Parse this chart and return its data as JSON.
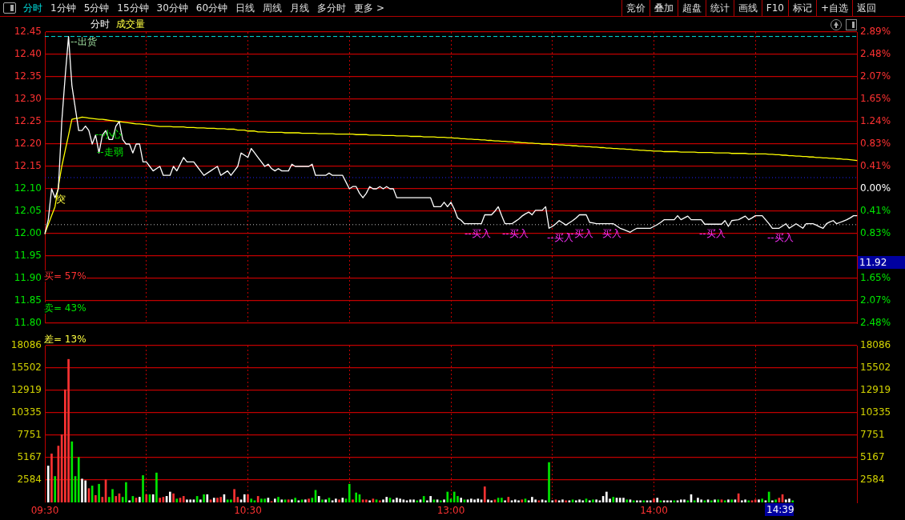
{
  "chart_data": [
    {
      "type": "other",
      "annotations": [
        "分时",
        "1分钟",
        "5分钟",
        "15分钟",
        "30分钟",
        "60分钟",
        "日线",
        "周线",
        "月线",
        "多分时",
        "更多 >",
        "竞价",
        "叠加",
        "超盘",
        "统计",
        "画线",
        "F10",
        "标记",
        "+自选",
        "返回"
      ]
    },
    {
      "type": "line",
      "title": "分时",
      "subtitle": "成交量",
      "categories": [
        null,
        null,
        null,
        null,
        null,
        null,
        null,
        null,
        null,
        null,
        null,
        null,
        null,
        null,
        null,
        null,
        null,
        null,
        null,
        null,
        null,
        null,
        null,
        null,
        null,
        null,
        null,
        null,
        null,
        null,
        null,
        null,
        null,
        null,
        null,
        null,
        null,
        null,
        null,
        null,
        null,
        null,
        null,
        null,
        null,
        null,
        null,
        null,
        null,
        null,
        null,
        null,
        null,
        null,
        null,
        null,
        null,
        null,
        null,
        null,
        null,
        null,
        null,
        null,
        null,
        null,
        null,
        null,
        null,
        null,
        null,
        null,
        null,
        null,
        null,
        null,
        null,
        null,
        null,
        null,
        null,
        null,
        null,
        null,
        null,
        null,
        null,
        null,
        null,
        null,
        null,
        null,
        null,
        null,
        null,
        null,
        null,
        null,
        null,
        null,
        null,
        null,
        null,
        null,
        null,
        null,
        null,
        null,
        null,
        null,
        null,
        null,
        null,
        null,
        null,
        null,
        null,
        null,
        null,
        null,
        null,
        null,
        null,
        null,
        null,
        null,
        null,
        null,
        null,
        null,
        null,
        null,
        null,
        null,
        null,
        null,
        null,
        null,
        null,
        null,
        null,
        null,
        null,
        null,
        null,
        null,
        null,
        null,
        null,
        null,
        null,
        null,
        null,
        null,
        null,
        null,
        null,
        null,
        null,
        null,
        null,
        null,
        null,
        null,
        null,
        null,
        null,
        null,
        null,
        null,
        null,
        null,
        null,
        null,
        null,
        null,
        null,
        null,
        null,
        null,
        null,
        null,
        null,
        null,
        null,
        null,
        null,
        null,
        null,
        null,
        null,
        null,
        null,
        null,
        null,
        null,
        null,
        null,
        null,
        null,
        null,
        null,
        null,
        null,
        null,
        null,
        null,
        null,
        null,
        null,
        null,
        null,
        null,
        null,
        null,
        null,
        null,
        null,
        null,
        null,
        null,
        null,
        null,
        null,
        null,
        null,
        null,
        null,
        null,
        null,
        null,
        null,
        null,
        null,
        null,
        null,
        null,
        null,
        null,
        null,
        null
      ],
      "ylim": [
        11.8,
        12.45
      ],
      "yticks": [
        12.45,
        {
          "value": 12.4,
          "label": "12.40"
        },
        12.35,
        {
          "value": 12.3,
          "label": "12.30"
        },
        12.25,
        {
          "value": 12.2,
          "label": "12.20"
        },
        12.15,
        {
          "value": 12.1,
          "label": "12.10"
        },
        12.05,
        {
          "value": 12.0,
          "label": "12.00"
        },
        11.95,
        {
          "value": 11.9,
          "label": "11.90"
        },
        11.85,
        {
          "value": 11.8,
          "label": "11.80"
        }
      ],
      "y2lim": [
        -2.48,
        2.89
      ],
      "y2ticks": [
        {
          "value": 2.89,
          "label": "2.89%"
        },
        {
          "value": 2.48,
          "label": "2.48%"
        },
        {
          "value": 2.07,
          "label": "2.07%"
        },
        {
          "value": 1.65,
          "label": "1.65%"
        },
        {
          "value": 1.24,
          "label": "1.24%"
        },
        {
          "value": 0.83,
          "label": "0.83%"
        },
        {
          "value": 0.41,
          "label": "0.41%"
        },
        {
          "value": 0,
          "label": "0.00%"
        },
        {
          "value": -0.41,
          "label": "0.41%"
        },
        {
          "value": -0.83,
          "label": "0.83%"
        },
        {
          "value": -1.24,
          "label": null
        },
        {
          "value": -1.65,
          "label": "1.65%"
        },
        {
          "value": -2.07,
          "label": "2.07%"
        },
        {
          "value": -2.48,
          "label": "2.48%"
        }
      ],
      "tick_labels": "y",
      "grid": true,
      "legend": false,
      "marker": "none",
      "line_style": "solid",
      "ref_lines": [
        {
          "axis": "y",
          "value": 12.44,
          "color": "#00e0e0",
          "line_style": "dashed"
        },
        {
          "axis": "y",
          "value": 12.125,
          "color": "#2020ff",
          "line_style": "dotted"
        },
        {
          "axis": "y",
          "value": 12.02,
          "color": "#c0c0c0",
          "line_style": "dotted"
        }
      ],
      "annotations": [
        "买= 57%",
        "卖= 43%",
        "差= 13%",
        "--出货",
        "突",
        "--小心",
        "--走弱",
        "--买入",
        "--买入",
        "--买入",
        "--买入",
        "买入",
        "--买入",
        "--买入",
        "11.92"
      ],
      "series": [
        {
          "color": "#ffffff",
          "values": [
            12.0,
            12.03,
            12.1,
            12.08,
            12.1,
            12.25,
            12.35,
            12.44,
            12.33,
            12.28,
            12.23,
            12.23,
            12.24,
            12.23,
            12.2,
            12.22,
            12.18,
            12.22,
            12.23,
            12.21,
            12.21,
            12.24,
            12.25,
            12.21,
            12.2,
            12.2,
            12.18,
            12.2,
            12.2,
            12.16,
            12.16,
            12.15,
            12.14,
            12.145,
            12.15,
            12.13,
            12.13,
            12.13,
            12.15,
            12.14,
            12.155,
            12.17,
            12.16,
            12.16,
            12.16,
            12.15,
            12.14,
            12.13,
            12.135,
            12.14,
            12.145,
            12.15,
            12.13,
            12.135,
            12.14,
            12.13,
            12.14,
            12.15,
            12.18,
            12.175,
            12.17,
            12.19,
            12.18,
            12.17,
            12.16,
            12.15,
            12.155,
            12.145,
            12.14,
            12.145,
            12.14,
            12.14,
            12.14,
            12.155,
            12.15,
            12.15,
            12.15,
            12.15,
            12.15,
            12.155,
            12.13,
            12.13,
            12.13,
            12.13,
            12.135,
            12.13,
            12.13,
            12.13,
            12.13,
            12.115,
            12.1,
            12.105,
            12.105,
            12.09,
            12.08,
            12.09,
            12.105,
            12.1,
            12.1,
            12.105,
            12.1,
            12.105,
            12.1,
            12.1,
            12.08,
            12.08,
            12.08,
            12.08,
            12.08,
            12.08,
            12.08,
            12.08,
            12.08,
            12.08,
            12.08,
            12.06,
            12.06,
            12.06,
            12.07,
            12.06,
            12.07,
            12.055,
            12.035,
            12.03,
            12.022,
            12.022,
            12.022,
            12.022,
            12.022,
            12.022,
            12.042,
            12.042,
            12.042,
            12.05,
            12.06,
            12.04,
            12.022,
            12.022,
            12.022,
            12.027,
            12.032,
            12.039,
            12.044,
            12.048,
            12.042,
            12.052,
            12.052,
            12.052,
            12.06,
            12.012,
            12.016,
            12.022,
            12.029,
            12.024,
            12.019,
            12.024,
            12.029,
            12.035,
            12.042,
            12.042,
            12.042,
            12.025,
            12.024,
            12.022,
            12.022,
            12.022,
            12.022,
            12.022,
            12.022,
            12.017,
            12.012,
            12.009,
            12.006,
            12.003,
            12.008,
            12.012,
            12.012,
            12.012,
            12.012,
            12.012,
            12.016,
            12.02,
            12.025,
            12.031,
            12.031,
            12.031,
            12.031,
            12.04,
            12.031,
            12.035,
            12.039,
            12.031,
            12.031,
            12.031,
            12.031,
            12.021,
            12.021,
            12.021,
            12.021,
            12.021,
            12.021,
            12.029,
            12.016,
            12.029,
            12.03,
            12.031,
            12.035,
            12.039,
            12.031,
            12.035,
            12.04,
            12.04,
            12.04,
            12.031,
            12.022,
            12.012,
            12.012,
            12.012,
            12.017,
            12.022,
            12.012,
            12.017,
            12.022,
            12.017,
            12.012,
            12.022,
            12.022,
            12.022,
            12.019,
            12.015,
            12.012,
            12.022,
            12.026,
            12.029,
            12.022,
            12.025,
            12.028,
            12.031,
            12.035,
            12.04,
            12.04
          ]
        },
        {
          "color": "#ffff00",
          "values": [
            12.0,
            12.02,
            12.04,
            12.06,
            12.105,
            12.15,
            12.185,
            12.22,
            12.255,
            12.257,
            12.258,
            12.26,
            12.259,
            12.258,
            12.257,
            12.256,
            12.255,
            12.255,
            12.254,
            12.253,
            12.252,
            12.251,
            12.25,
            12.249,
            12.248,
            12.247,
            12.246,
            12.245,
            12.245,
            12.244,
            12.243,
            12.242,
            12.241,
            12.24,
            12.239,
            12.239,
            12.239,
            12.239,
            12.238,
            12.238,
            12.238,
            12.238,
            12.237,
            12.237,
            12.237,
            12.236,
            12.236,
            12.236,
            12.235,
            12.235,
            12.235,
            12.234,
            12.234,
            12.234,
            12.233,
            12.233,
            12.233,
            12.231,
            12.231,
            12.231,
            12.229,
            12.229,
            12.229,
            12.227,
            12.227,
            12.227,
            12.226,
            12.226,
            12.226,
            12.226,
            12.226,
            12.225,
            12.225,
            12.225,
            12.225,
            12.225,
            12.224,
            12.224,
            12.224,
            12.224,
            12.224,
            12.223,
            12.223,
            12.223,
            12.223,
            12.223,
            12.222,
            12.222,
            12.222,
            12.222,
            12.222,
            12.222,
            12.221,
            12.221,
            12.221,
            12.221,
            12.22,
            12.22,
            12.22,
            12.22,
            12.219,
            12.219,
            12.219,
            12.219,
            12.218,
            12.218,
            12.218,
            12.218,
            12.217,
            12.217,
            12.217,
            12.217,
            12.216,
            12.216,
            12.216,
            12.216,
            12.215,
            12.215,
            12.215,
            12.214,
            12.214,
            12.213,
            12.213,
            12.212,
            12.212,
            12.211,
            12.211,
            12.21,
            12.21,
            12.209,
            12.209,
            12.208,
            12.208,
            12.207,
            12.207,
            12.206,
            12.206,
            12.205,
            12.205,
            12.204,
            12.204,
            12.203,
            12.203,
            12.202,
            12.202,
            12.201,
            12.201,
            12.2,
            12.2,
            12.2,
            12.199,
            12.199,
            12.198,
            12.198,
            12.197,
            12.197,
            12.196,
            12.196,
            12.195,
            12.195,
            12.194,
            12.194,
            12.193,
            12.193,
            12.192,
            12.192,
            12.191,
            12.191,
            12.19,
            12.19,
            12.189,
            12.189,
            12.188,
            12.188,
            12.187,
            12.187,
            12.186,
            12.186,
            12.185,
            12.185,
            12.184,
            12.184,
            12.184,
            12.183,
            12.183,
            12.183,
            12.183,
            12.183,
            12.182,
            12.182,
            12.182,
            12.182,
            12.182,
            12.181,
            12.181,
            12.181,
            12.181,
            12.181,
            12.18,
            12.18,
            12.18,
            12.18,
            12.18,
            12.179,
            12.179,
            12.179,
            12.179,
            12.179,
            12.178,
            12.178,
            12.178,
            12.178,
            12.178,
            12.178,
            12.177,
            12.177,
            12.176,
            12.176,
            12.175,
            12.175,
            12.174,
            12.174,
            12.173,
            12.173,
            12.172,
            12.172,
            12.171,
            12.171,
            12.17,
            12.17,
            12.169,
            12.169,
            12.168,
            12.168,
            12.167,
            12.167,
            12.166,
            12.166,
            12.165,
            12.164,
            12.163
          ]
        }
      ]
    },
    {
      "type": "bar",
      "categories": [
        "09:30",
        null,
        null,
        null,
        null,
        null,
        null,
        null,
        null,
        null,
        null,
        null,
        null,
        null,
        null,
        null,
        null,
        null,
        null,
        null,
        null,
        null,
        null,
        null,
        null,
        null,
        null,
        null,
        null,
        null,
        null,
        null,
        null,
        null,
        null,
        null,
        null,
        null,
        null,
        null,
        null,
        null,
        null,
        null,
        null,
        null,
        null,
        null,
        null,
        null,
        null,
        null,
        null,
        null,
        null,
        null,
        null,
        null,
        null,
        null,
        "10:30",
        null,
        null,
        null,
        null,
        null,
        null,
        null,
        null,
        null,
        null,
        null,
        null,
        null,
        null,
        null,
        null,
        null,
        null,
        null,
        null,
        null,
        null,
        null,
        null,
        null,
        null,
        null,
        null,
        null,
        null,
        null,
        null,
        null,
        null,
        null,
        null,
        null,
        null,
        null,
        null,
        null,
        null,
        null,
        null,
        null,
        null,
        null,
        null,
        null,
        null,
        null,
        null,
        null,
        null,
        null,
        null,
        null,
        null,
        null,
        "13:00",
        null,
        null,
        null,
        null,
        null,
        null,
        null,
        null,
        null,
        null,
        null,
        null,
        null,
        null,
        null,
        null,
        null,
        null,
        null,
        null,
        null,
        null,
        null,
        null,
        null,
        null,
        null,
        null,
        null,
        null,
        null,
        null,
        null,
        null,
        null,
        null,
        null,
        null,
        null,
        null,
        null,
        null,
        null,
        null,
        null,
        null,
        null,
        null,
        null,
        null,
        null,
        null,
        null,
        null,
        null,
        null,
        null,
        null,
        null,
        "14:00",
        null,
        null,
        null,
        null,
        null,
        null,
        null,
        null,
        null,
        null,
        null,
        null,
        null,
        null,
        null,
        null,
        null,
        null,
        null,
        null,
        null,
        null,
        null,
        null,
        null,
        null,
        null,
        null,
        null,
        null,
        null,
        null,
        null,
        null,
        null,
        null,
        null,
        null,
        null,
        null,
        null,
        null,
        null,
        null,
        null,
        null,
        null,
        null,
        null,
        null,
        null,
        null,
        null,
        null,
        null,
        null,
        null,
        null,
        null,
        null
      ],
      "ylim": [
        0,
        18086
      ],
      "yticks": [
        2584,
        5167,
        7751,
        10335,
        12919,
        15502,
        18086
      ],
      "y2lim": [
        0,
        18086
      ],
      "y2ticks": [
        2584,
        5167,
        7751,
        10335,
        12919,
        15502,
        18086
      ],
      "grid": true,
      "legend": false,
      "annotations": [
        "14:39"
      ],
      "series": [
        {
          "values": [
            null,
            4200,
            5600,
            3000,
            6500,
            7800,
            13000,
            16500,
            7000,
            3000,
            5200,
            2700,
            2500,
            1600,
            1900,
            800,
            2100,
            600,
            2600,
            600,
            1500,
            700,
            1000,
            600,
            2300,
            200,
            700,
            500,
            600,
            3100,
            900,
            900,
            900,
            3400,
            500,
            600,
            700,
            1200,
            1000,
            400,
            500,
            700,
            300,
            300,
            300,
            700,
            300,
            900,
            900,
            300,
            500,
            500,
            600,
            900,
            300,
            300,
            1500,
            600,
            300,
            900,
            900,
            400,
            200,
            700,
            400,
            400,
            500,
            100,
            400,
            600,
            300,
            300,
            300,
            300,
            500,
            200,
            300,
            300,
            400,
            500,
            1400,
            700,
            300,
            300,
            500,
            200,
            400,
            300,
            500,
            400,
            2100,
            300,
            1100,
            900,
            300,
            300,
            200,
            400,
            300,
            200,
            300,
            600,
            500,
            300,
            500,
            400,
            300,
            200,
            300,
            300,
            200,
            300,
            700,
            200,
            700,
            300,
            300,
            200,
            300,
            1200,
            400,
            1200,
            700,
            500,
            300,
            300,
            400,
            300,
            400,
            300,
            1800,
            300,
            200,
            300,
            500,
            500,
            200,
            600,
            200,
            300,
            200,
            300,
            400,
            200,
            600,
            300,
            200,
            300,
            200,
            4600,
            200,
            300,
            200,
            300,
            200,
            200,
            300,
            200,
            300,
            200,
            400,
            200,
            300,
            300,
            200,
            700,
            1200,
            400,
            600,
            500,
            500,
            500,
            300,
            300,
            200,
            200,
            200,
            200,
            200,
            200,
            400,
            500,
            200,
            200,
            200,
            200,
            200,
            200,
            300,
            300,
            200,
            900,
            200,
            500,
            300,
            200,
            300,
            200,
            300,
            300,
            300,
            200,
            300,
            300,
            300,
            1000,
            200,
            300,
            200,
            200,
            300,
            300,
            400,
            200,
            1200,
            200,
            300,
            500,
            900,
            300,
            400,
            200,
            null,
            null,
            null,
            null,
            null,
            null,
            null,
            null,
            null,
            null,
            null,
            null,
            null,
            null,
            null,
            null,
            null,
            null,
            null
          ],
          "colors": [
            "#ffffff",
            "#ffffff",
            "#ff3232",
            "#00e600",
            "#ff3232",
            "#ff3232",
            "#ff3232",
            "#ff3232",
            "#00e600",
            "#00e600",
            "#00e600",
            "#ffffff",
            "#ffffff",
            "#ff3232",
            "#00e600",
            "#ff3232",
            "#00e600",
            "#ff3232",
            "#ff3232",
            "#00e600",
            "#00e600",
            "#ff3232",
            "#ff3232",
            "#00e600",
            "#00e600",
            "#ffffff",
            "#00e600",
            "#ff3232",
            "#ffffff",
            "#00e600",
            "#ff3232",
            "#00e600",
            "#ffffff",
            "#00e600",
            "#ff3232",
            "#ff3232",
            "#ffffff",
            "#ffffff",
            "#ff3232",
            "#00e600",
            "#ff3232",
            "#ff3232",
            "#ffffff",
            "#ffffff",
            "#ffffff",
            "#00e600",
            "#ffffff",
            "#00e600",
            "#ffffff",
            "#ff3232",
            "#ffffff",
            "#ff3232",
            "#ff3232",
            "#ffffff",
            "#00e600",
            "#00e600",
            "#ff3232",
            "#ff3232",
            "#ffffff",
            "#ffffff",
            "#ff3232",
            "#00e600",
            "#00e600",
            "#ff3232",
            "#00e600",
            "#00e600",
            "#ffffff",
            "#ff3232",
            "#ffffff",
            "#00e600",
            "#ffffff",
            "#00e600",
            "#ff3232",
            "#ffffff",
            "#00e600",
            "#ffffff",
            "#00e600",
            "#ffffff",
            "#ff3232",
            "#00e600",
            "#00e600",
            "#ffffff",
            "#00e600",
            "#ffffff",
            "#00e600",
            "#ffffff",
            "#ffffff",
            "#ff3232",
            "#ffffff",
            "#00e600",
            "#00e600",
            "#ff3232",
            "#00e600",
            "#00e600",
            "#ff3232",
            "#ff3232",
            "#ffffff",
            "#ff3232",
            "#00e600",
            "#ff3232",
            "#ffffff",
            "#ffffff",
            "#00e600",
            "#ffffff",
            "#ffffff",
            "#ffffff",
            "#ffffff",
            "#ffffff",
            "#ffffff",
            "#ffffff",
            "#00e600",
            "#ffffff",
            "#00e600",
            "#ffffff",
            "#ffffff",
            "#00e600",
            "#ffffff",
            "#00e600",
            "#ffffff",
            "#00e600",
            "#00e600",
            "#00e600",
            "#00e600",
            "#ffffff",
            "#00e600",
            "#ffffff",
            "#ffffff",
            "#ffffff",
            "#ffffff",
            "#ffffff",
            "#ff3232",
            "#ffffff",
            "#ffffff",
            "#ff3232",
            "#00e600",
            "#00e600",
            "#ffffff",
            "#ff3232",
            "#ffffff",
            "#ffffff",
            "#ffffff",
            "#ff3232",
            "#00e600",
            "#ffffff",
            "#ffffff",
            "#ffffff",
            "#ff3232",
            "#ffffff",
            "#ffffff",
            "#00e600",
            "#ffffff",
            "#ff3232",
            "#ffffff",
            "#ffffff",
            "#ff3232",
            "#ffffff",
            "#00e600",
            "#ffffff",
            "#ffffff",
            "#ffffff",
            "#00e600",
            "#ffffff",
            "#00e600",
            "#ffffff",
            "#ffffff",
            "#ffffff",
            "#ffffff",
            "#ffffff",
            "#00e600",
            "#ffffff",
            "#ffffff",
            "#ffffff",
            "#00e600",
            "#ffffff",
            "#00e600",
            "#ffffff",
            "#ffffff",
            "#00e600",
            "#ffffff",
            "#ffffff",
            "#ff3232",
            "#ffffff",
            "#00e600",
            "#ffffff",
            "#ffffff",
            "#ffffff",
            "#00e600",
            "#ffffff",
            "#ffffff",
            "#ffffff",
            "#00e600",
            "#ffffff",
            "#00e600",
            "#ffffff",
            "#ffffff",
            "#00e600",
            "#ffffff",
            "#00e600",
            "#ffffff",
            "#00e600",
            "#ff3232",
            "#00e600",
            "#ffffff",
            "#00e600",
            "#ffffff",
            "#ff3232",
            "#ffffff",
            "#ffffff",
            "#00e600",
            "#ff3232",
            "#ff3232",
            "#ffffff",
            "#00e600",
            "#ffffff",
            "#00e600",
            "#ffffff",
            "#00e600",
            "#ff3232",
            "#ff3232",
            "#ffffff",
            "#ffffff",
            "#00e600",
            "#ffffff",
            "#ffffff",
            "#ffffff",
            "#ffffff",
            "#ffffff",
            "#ffffff",
            "#ffffff",
            "#ffffff",
            "#ffffff",
            "#ffffff",
            "#ffffff",
            "#ffffff",
            "#ffffff",
            "#ffffff",
            "#ffffff",
            "#ffffff",
            "#ffffff",
            "#ffffff",
            "#ffffff"
          ]
        }
      ]
    }
  ]
}
